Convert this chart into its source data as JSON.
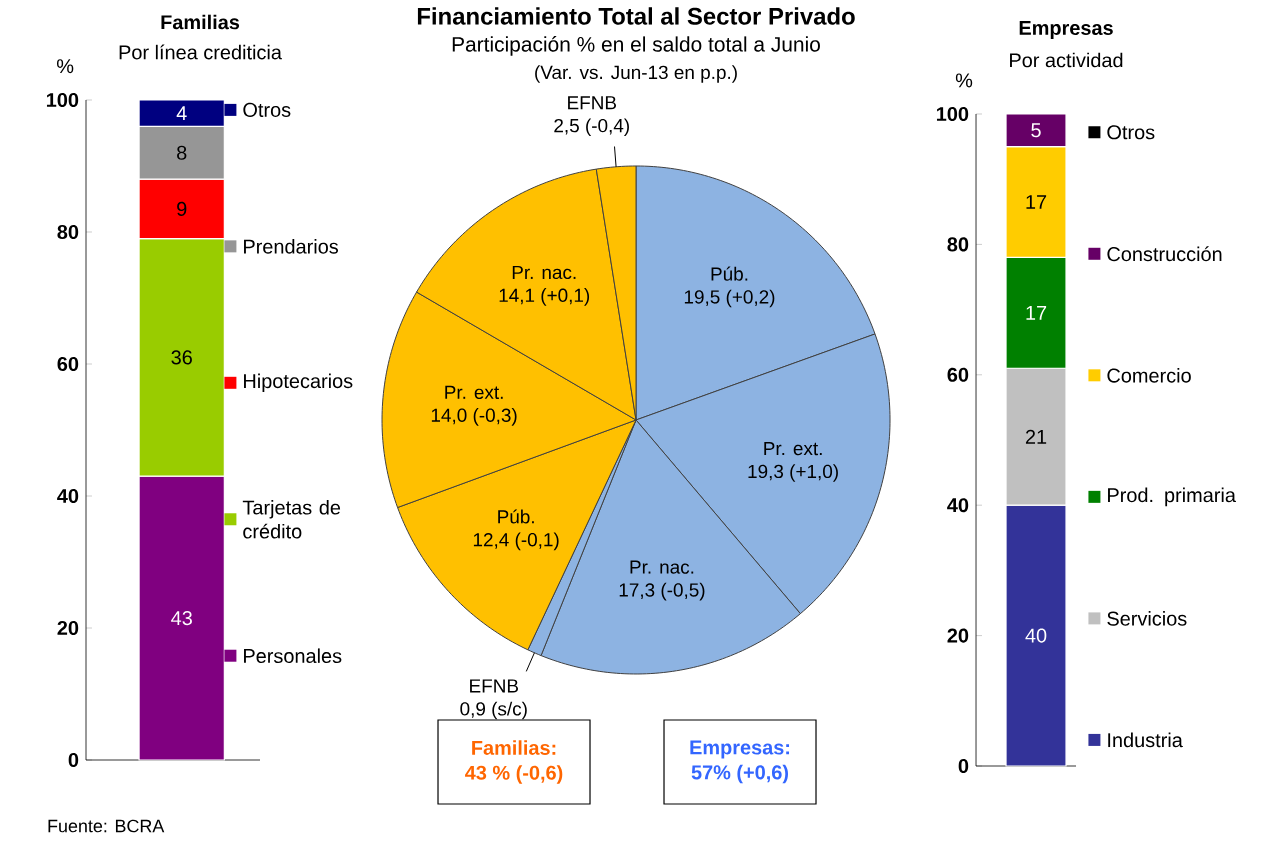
{
  "chart_data": [
    {
      "type": "bar",
      "title": "Familias",
      "subtitle": "Por línea crediticia",
      "ylabel": "%",
      "categories": [
        null
      ],
      "stacked": true,
      "ylim": [
        0,
        100
      ],
      "yticks": [
        0,
        20,
        40,
        60,
        80,
        100
      ],
      "data_labels": true,
      "legend": "right",
      "annotations": [
        "Fuente: BCRA"
      ],
      "series": [
        {
          "name": "Personales",
          "color": "#800080",
          "values": [
            43
          ]
        },
        {
          "name": "Tarjetas de crédito",
          "color": "#99cc00",
          "values": [
            36
          ]
        },
        {
          "name": "Hipotecarios",
          "color": "#ff0000",
          "values": [
            9
          ]
        },
        {
          "name": "Prendarios",
          "color": "#969696",
          "values": [
            8
          ]
        },
        {
          "name": "Otros",
          "color": "#000080",
          "values": [
            4
          ]
        }
      ]
    },
    {
      "type": "pie",
      "title": "Financiamiento Total al Sector Privado",
      "subtitle": "Participación % en el saldo total a Junio",
      "categories": [
        "Púb.",
        "Pr. ext.",
        "Pr. nac.",
        "EFNB",
        "Púb.",
        "Pr. ext.",
        "Pr. nac.",
        "EFNB"
      ],
      "values": [
        19.5,
        19.3,
        17.3,
        0.9,
        12.4,
        14.0,
        14.1,
        2.5
      ],
      "value_labels": [
        "19,5 (+0,2)",
        "19,3 (+1,0)",
        "17,3 (-0,5)",
        "0,9 (s/c)",
        "12,4 (-0,1)",
        "14,0 (-0,3)",
        "14,1 (+0,1)",
        "2,5 (-0,4)"
      ],
      "colors": [
        "#8db3e2",
        "#8db3e2",
        "#8db3e2",
        "#8db3e2",
        "#ffc000",
        "#ffc000",
        "#ffc000",
        "#ffc000"
      ],
      "annotations": [
        "(Var. vs. Jun-13 en p.p.)",
        "Familias:",
        "43 % (-0,6)",
        "Empresas:",
        "57% (+0,6)"
      ]
    },
    {
      "type": "bar",
      "title": "Empresas",
      "subtitle": "Por actividad",
      "ylabel": "%",
      "categories": [
        null
      ],
      "stacked": true,
      "ylim": [
        0,
        100
      ],
      "yticks": [
        0,
        20,
        40,
        60,
        80,
        100
      ],
      "data_labels": true,
      "legend": "right",
      "series": [
        {
          "name": "Industria",
          "color": "#333399",
          "values": [
            40
          ]
        },
        {
          "name": "Servicios",
          "color": "#c0c0c0",
          "values": [
            21
          ]
        },
        {
          "name": "Prod. primaria",
          "color": "#008000",
          "values": [
            17
          ]
        },
        {
          "name": "Comercio",
          "color": "#ffcc00",
          "values": [
            17
          ]
        },
        {
          "name": "Construcción",
          "color": "#660066",
          "values": [
            5
          ]
        },
        {
          "name": "Otros",
          "color": "#000000",
          "values": [
            null
          ]
        }
      ]
    }
  ]
}
